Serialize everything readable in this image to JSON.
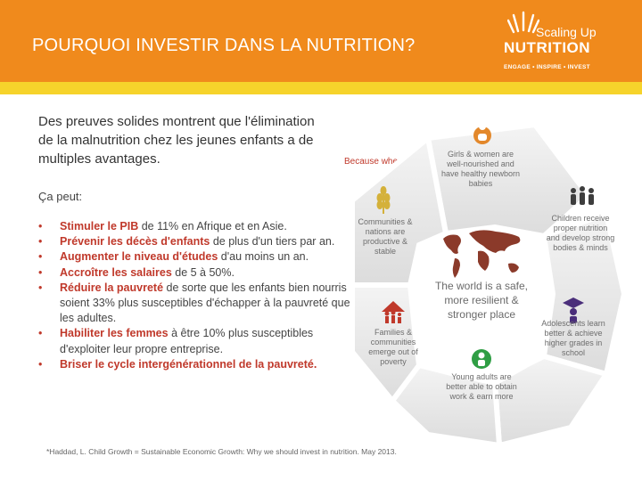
{
  "header": {
    "title": "POURQUOI  INVESTIR DANS LA NUTRITION?",
    "bg_color": "#f08a1c",
    "band_color": "#f6d32b"
  },
  "logo": {
    "line1": "Scaling Up",
    "line2": "NUTRITION",
    "tagline": "ENGAGE • INSPIRE • INVEST"
  },
  "intro": {
    "text": "Des preuves solides montrent que l'élimination de la malnutrition chez les jeunes enfants a de multiples avantages."
  },
  "because_when": "Because when...",
  "ca_peut": "Ça peut:",
  "benefits": [
    {
      "highlight": "Stimuler le PIB",
      "rest": " de 11% en Afrique et en Asie."
    },
    {
      "highlight": "Prévenir les décès d'enfants",
      "rest": " de plus d'un tiers par an."
    },
    {
      "highlight": "Augmenter le niveau d'études",
      "rest": " d'au moins un an."
    },
    {
      "highlight": "Accroître les salaires",
      "rest": " de 5 à 50%."
    },
    {
      "highlight": "Réduire la pauvreté",
      "rest": " de sorte que les enfants bien nourris soient 33% plus susceptibles d'échapper à la pauvreté que les adultes."
    },
    {
      "highlight": "Habiliter les femmes",
      "rest": " à être 10% plus susceptibles d'exploiter leur propre entreprise."
    },
    {
      "highlight": "Briser le cycle intergénérationnel de la pauvreté.",
      "rest": ""
    }
  ],
  "accent_color": "#c0392b",
  "wheel": {
    "center": "The world is a safe, more resilient & stronger place",
    "segments": {
      "girls": "Girls & women are well-nourished and have healthy newborn babies",
      "children": "Children receive proper nutrition and develop strong bodies & minds",
      "adolescents": "Adolescents learn better & achieve higher grades in school",
      "young_adults": "Young adults are better able to obtain work & earn more",
      "families": "Families & communities emerge out of poverty",
      "communities": "Communities & nations are productive & stable"
    },
    "icons": [
      "mother-baby-icon",
      "people-group-icon",
      "graduate-icon",
      "worker-icon",
      "house-family-icon",
      "wheat-icon",
      "world-map-icon"
    ]
  },
  "footnote": "*Haddad, L. Child Growth = Sustainable Economic Growth: Why we should invest in nutrition. May 2013."
}
